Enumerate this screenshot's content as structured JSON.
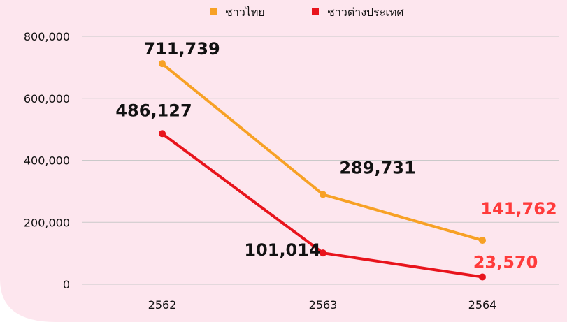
{
  "chart_data": {
    "type": "line",
    "categories": [
      "2562",
      "2563",
      "2564"
    ],
    "series": [
      {
        "name": "ชาวไทย",
        "color": "#f7a125",
        "values": [
          711739,
          289731,
          141762
        ],
        "value_labels": [
          "711,739",
          "289,731",
          "141,762"
        ],
        "value_label_colors": [
          "#111111",
          "#111111",
          "#ff3b3b"
        ]
      },
      {
        "name": "ชาวต่างประเทศ",
        "color": "#e8141c",
        "values": [
          486127,
          101014,
          23570
        ],
        "value_labels": [
          "486,127",
          "101,014",
          "23,570"
        ],
        "value_label_colors": [
          "#111111",
          "#111111",
          "#ff3b3b"
        ]
      }
    ],
    "ylim": [
      0,
      800000
    ],
    "yticks": [
      {
        "value": 0,
        "label": "0"
      },
      {
        "value": 200000,
        "label": "200,000"
      },
      {
        "value": 400000,
        "label": "400,000"
      },
      {
        "value": 600000,
        "label": "600,000"
      },
      {
        "value": 800000,
        "label": "800,000"
      }
    ],
    "grid": true,
    "legend": "top"
  }
}
